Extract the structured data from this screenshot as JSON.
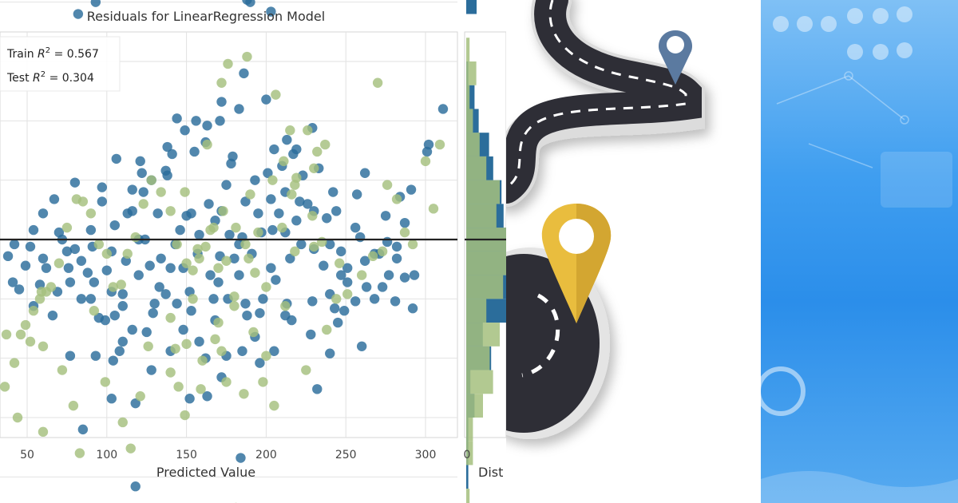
{
  "chart_data": {
    "type": "scatter",
    "title": "Residuals for LinearRegression Model",
    "xlabel": "Predicted Value",
    "ylabel": "",
    "xlim": [
      35,
      320
    ],
    "ylim": [
      -125,
      135
    ],
    "x_ticks": [
      50,
      100,
      150,
      200,
      250,
      300
    ],
    "y_grid": [
      -100,
      -75,
      -50,
      -25,
      0,
      25,
      50,
      75,
      100,
      125
    ],
    "grid": true,
    "zero_line": 0,
    "legend": {
      "placement": "top-left",
      "entries": [
        {
          "label": "Train R² = 0.567",
          "prefix": "Train ",
          "var": "R",
          "sup": "2",
          "value": " = 0.567"
        },
        {
          "label": "Test R² = 0.304",
          "prefix": "Test ",
          "var": "R",
          "sup": "2",
          "value": " = 0.304"
        }
      ]
    },
    "series": [
      {
        "name": "Train",
        "color": "#2b6d9b",
        "points": [
          [
            217,
            117
          ],
          [
            190,
            100
          ],
          [
            188,
            101
          ],
          [
            203,
            96
          ],
          [
            82,
            95
          ],
          [
            93,
            100
          ],
          [
            200,
            59
          ],
          [
            172,
            58
          ],
          [
            186,
            70
          ],
          [
            121,
            33
          ],
          [
            149,
            46
          ],
          [
            122,
            28
          ],
          [
            217,
            36
          ],
          [
            229,
            47
          ],
          [
            238,
            9
          ],
          [
            183,
            -2
          ],
          [
            120,
            0
          ],
          [
            134,
            -8
          ],
          [
            90,
            4
          ],
          [
            204,
            4
          ],
          [
            212,
            3
          ],
          [
            140,
            -12
          ],
          [
            165,
            -15
          ],
          [
            130,
            -27
          ],
          [
            187,
            -27
          ],
          [
            105,
            -32
          ],
          [
            108,
            -47
          ],
          [
            153,
            -30
          ],
          [
            216,
            -34
          ],
          [
            240,
            -23
          ],
          [
            93,
            -49
          ],
          [
            77,
            -49
          ],
          [
            260,
            -45
          ],
          [
            247,
            -15
          ],
          [
            230,
            -4
          ],
          [
            221,
            16
          ],
          [
            60,
            11
          ],
          [
            67,
            17
          ],
          [
            80,
            24
          ],
          [
            106,
            34
          ],
          [
            97,
            22
          ],
          [
            132,
            11
          ],
          [
            150,
            10
          ],
          [
            175,
            23
          ],
          [
            178,
            32
          ],
          [
            185,
            1
          ],
          [
            230,
            12
          ],
          [
            262,
            28
          ],
          [
            273,
            -20
          ],
          [
            282,
            -8
          ],
          [
            277,
            -15
          ],
          [
            301,
            37
          ],
          [
            302,
            40
          ],
          [
            311,
            55
          ],
          [
            291,
            21
          ],
          [
            257,
            19
          ],
          [
            163,
            -66
          ],
          [
            125,
            -39
          ],
          [
            172,
            -58
          ],
          [
            140,
            -47
          ],
          [
            152,
            -67
          ],
          [
            104,
            -51
          ],
          [
            118,
            -69
          ],
          [
            193,
            -41
          ],
          [
            249,
            -30
          ],
          [
            251,
            -18
          ],
          [
            196,
            -52
          ],
          [
            247,
            -5
          ],
          [
            245,
            -35
          ],
          [
            171,
            -7
          ],
          [
            183,
            -15
          ],
          [
            152,
            -22
          ],
          [
            110,
            -23
          ],
          [
            100,
            -13
          ],
          [
            103,
            -5
          ],
          [
            91,
            -3
          ],
          [
            97,
            16
          ],
          [
            105,
            6
          ],
          [
            113,
            11
          ],
          [
            123,
            20
          ],
          [
            128,
            25
          ],
          [
            137,
            29
          ],
          [
            141,
            36
          ],
          [
            155,
            37
          ],
          [
            162,
            41
          ],
          [
            171,
            50
          ],
          [
            179,
            35
          ],
          [
            205,
            38
          ],
          [
            213,
            42
          ],
          [
            183,
            55
          ],
          [
            163,
            48
          ],
          [
            156,
            50
          ],
          [
            144,
            51
          ],
          [
            138,
            39
          ],
          [
            138,
            27
          ],
          [
            116,
            21
          ],
          [
            116,
            12
          ],
          [
            124,
            0
          ],
          [
            146,
            4
          ],
          [
            153,
            11
          ],
          [
            164,
            15
          ],
          [
            168,
            8
          ],
          [
            177,
            2
          ],
          [
            180,
            -8
          ],
          [
            191,
            -6
          ],
          [
            195,
            11
          ],
          [
            203,
            17
          ],
          [
            212,
            20
          ],
          [
            223,
            27
          ],
          [
            233,
            30
          ],
          [
            242,
            20
          ],
          [
            256,
            5
          ],
          [
            262,
            -9
          ],
          [
            271,
            -6
          ],
          [
            275,
            10
          ],
          [
            284,
            18
          ],
          [
            292,
            -29
          ],
          [
            287,
            -16
          ],
          [
            281,
            -26
          ],
          [
            268,
            -25
          ],
          [
            66,
            -32
          ],
          [
            45,
            -21
          ],
          [
            42,
            -2
          ],
          [
            54,
            4
          ],
          [
            52,
            -3
          ],
          [
            72,
            0
          ],
          [
            62,
            -12
          ],
          [
            75,
            -5
          ],
          [
            77,
            -18
          ],
          [
            84,
            -25
          ],
          [
            88,
            -14
          ],
          [
            95,
            -33
          ],
          [
            110,
            -43
          ],
          [
            128,
            -55
          ],
          [
            148,
            -38
          ],
          [
            158,
            -43
          ],
          [
            168,
            -34
          ],
          [
            176,
            -25
          ],
          [
            188,
            -32
          ],
          [
            198,
            -25
          ],
          [
            206,
            -17
          ],
          [
            215,
            -8
          ],
          [
            222,
            -2
          ],
          [
            229,
            -26
          ],
          [
            236,
            -11
          ],
          [
            240,
            -2
          ],
          [
            251,
            -12
          ],
          [
            256,
            -26
          ],
          [
            263,
            -20
          ],
          [
            268,
            -6
          ],
          [
            276,
            -1
          ],
          [
            103,
            -67
          ],
          [
            85,
            -80
          ],
          [
            118,
            -104
          ],
          [
            184,
            -92
          ],
          [
            232,
            -63
          ],
          [
            240,
            -48
          ],
          [
            212,
            -32
          ],
          [
            205,
            -47
          ],
          [
            185,
            -47
          ],
          [
            162,
            -50
          ],
          [
            144,
            -27
          ],
          [
            175,
            -49
          ],
          [
            133,
            -20
          ],
          [
            120,
            -15
          ],
          [
            110,
            -28
          ],
          [
            99,
            -34
          ],
          [
            90,
            -25
          ],
          [
            80,
            -4
          ],
          [
            70,
            3
          ],
          [
            60,
            -8
          ],
          [
            49,
            -11
          ],
          [
            38,
            -7
          ],
          [
            41,
            -18
          ],
          [
            197,
            3
          ],
          [
            208,
            11
          ],
          [
            219,
            8
          ],
          [
            226,
            15
          ],
          [
            244,
            12
          ],
          [
            259,
            1
          ],
          [
            282,
            -3
          ],
          [
            287,
            7
          ],
          [
            293,
            -15
          ],
          [
            243,
            -29
          ],
          [
            228,
            -40
          ],
          [
            213,
            -27
          ],
          [
            203,
            -12
          ],
          [
            196,
            -31
          ],
          [
            167,
            -25
          ],
          [
            157,
            -6
          ],
          [
            148,
            -12
          ],
          [
            137,
            -23
          ],
          [
            129,
            -31
          ],
          [
            116,
            -38
          ],
          [
            103,
            -22
          ],
          [
            92,
            -18
          ],
          [
            84,
            -9
          ],
          [
            76,
            -12
          ],
          [
            69,
            -22
          ],
          [
            58,
            -19
          ],
          [
            54,
            -28
          ],
          [
            112,
            -9
          ],
          [
            127,
            -11
          ],
          [
            143,
            -2
          ],
          [
            158,
            2
          ],
          [
            172,
            12
          ],
          [
            187,
            16
          ],
          [
            193,
            25
          ],
          [
            201,
            28
          ],
          [
            210,
            31
          ],
          [
            219,
            38
          ],
          [
            170,
            -18
          ]
        ]
      },
      {
        "name": "Test",
        "color": "#a5c07e",
        "points": [
          [
            270,
            66
          ],
          [
            181,
            -113
          ],
          [
            145,
            -62
          ],
          [
            110,
            -77
          ],
          [
            115,
            -88
          ],
          [
            172,
            -47
          ],
          [
            149,
            -74
          ],
          [
            159,
            -63
          ],
          [
            170,
            -35
          ],
          [
            143,
            -46
          ],
          [
            60,
            -45
          ],
          [
            52,
            -43
          ],
          [
            72,
            -55
          ],
          [
            44,
            -75
          ],
          [
            36,
            -62
          ],
          [
            42,
            -52
          ],
          [
            58,
            -25
          ],
          [
            235,
            -1
          ],
          [
            276,
            23
          ],
          [
            282,
            17
          ],
          [
            309,
            40
          ],
          [
            300,
            33
          ],
          [
            305,
            13
          ],
          [
            244,
            -25
          ],
          [
            230,
            -3
          ],
          [
            225,
            -55
          ],
          [
            238,
            -38
          ],
          [
            192,
            -39
          ],
          [
            200,
            -49
          ],
          [
            212,
            -28
          ],
          [
            189,
            -8
          ],
          [
            180,
            -24
          ],
          [
            175,
            -9
          ],
          [
            165,
            4
          ],
          [
            181,
            5
          ],
          [
            149,
            20
          ],
          [
            162,
            -3
          ],
          [
            163,
            40
          ],
          [
            172,
            66
          ],
          [
            176,
            74
          ],
          [
            188,
            77
          ],
          [
            206,
            61
          ],
          [
            215,
            46
          ],
          [
            226,
            46
          ],
          [
            237,
            40
          ],
          [
            232,
            37
          ],
          [
            230,
            30
          ],
          [
            216,
            19
          ],
          [
            219,
            26
          ],
          [
            218,
            23
          ],
          [
            229,
            10
          ],
          [
            210,
            5
          ],
          [
            193,
            -14
          ],
          [
            195,
            3
          ],
          [
            187,
            -2
          ],
          [
            170,
            -12
          ],
          [
            158,
            -8
          ],
          [
            154,
            -13
          ],
          [
            144,
            -2
          ],
          [
            150,
            -10
          ],
          [
            140,
            12
          ],
          [
            134,
            20
          ],
          [
            128,
            25
          ],
          [
            123,
            15
          ],
          [
            118,
            1
          ],
          [
            113,
            -6
          ],
          [
            109,
            -19
          ],
          [
            104,
            -20
          ],
          [
            100,
            -6
          ],
          [
            95,
            -2
          ],
          [
            90,
            11
          ],
          [
            85,
            16
          ],
          [
            81,
            17
          ],
          [
            75,
            5
          ],
          [
            70,
            -10
          ],
          [
            65,
            -20
          ],
          [
            59,
            -22
          ],
          [
            54,
            -30
          ],
          [
            49,
            -36
          ],
          [
            46,
            -40
          ],
          [
            140,
            -33
          ],
          [
            150,
            -44
          ],
          [
            160,
            -51
          ],
          [
            175,
            -60
          ],
          [
            186,
            -65
          ],
          [
            198,
            -60
          ],
          [
            205,
            -70
          ],
          [
            126,
            -45
          ],
          [
            83,
            -90
          ],
          [
            79,
            -70
          ],
          [
            60,
            -81
          ],
          [
            37,
            -40
          ],
          [
            92,
            -30
          ],
          [
            62,
            -22
          ],
          [
            200,
            -20
          ],
          [
            218,
            -5
          ],
          [
            246,
            -10
          ],
          [
            251,
            -23
          ],
          [
            260,
            -15
          ],
          [
            267,
            -7
          ],
          [
            273,
            -5
          ],
          [
            287,
            3
          ],
          [
            292,
            -2
          ],
          [
            180,
            -28
          ],
          [
            154,
            -25
          ],
          [
            157,
            -4
          ],
          [
            167,
            5
          ],
          [
            173,
            12
          ],
          [
            190,
            19
          ],
          [
            204,
            25
          ],
          [
            211,
            33
          ],
          [
            168,
            -42
          ],
          [
            140,
            -56
          ],
          [
            121,
            -66
          ],
          [
            99,
            -60
          ]
        ]
      }
    ],
    "side_panel": {
      "x_tick": "0",
      "xlabel": "Dist"
    }
  }
}
